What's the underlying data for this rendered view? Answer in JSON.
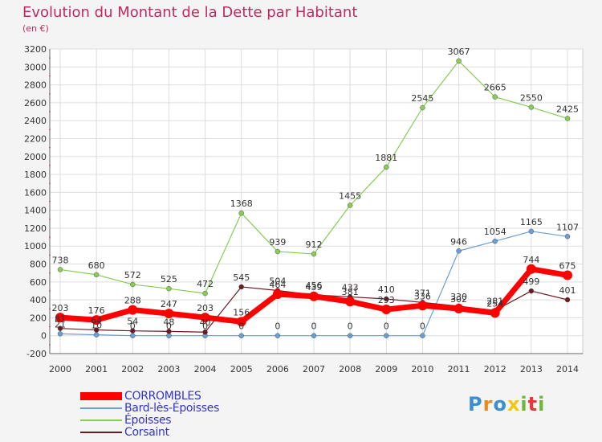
{
  "title": "Evolution du Montant de la Dette par Habitant",
  "unit": "(en €)",
  "logo": {
    "letters": [
      "P",
      "r",
      "o",
      "x",
      "i",
      "t",
      "i"
    ],
    "colors": [
      "#3a8fd0",
      "#e88b1e",
      "#3a8fd0",
      "#f2c60f",
      "#6cb83a",
      "#e23a3a",
      "#6cb83a"
    ]
  },
  "chart_data": {
    "type": "line",
    "x": [
      2000,
      2001,
      2002,
      2003,
      2004,
      2005,
      2006,
      2007,
      2008,
      2009,
      2010,
      2011,
      2012,
      2013,
      2014
    ],
    "ylim": [
      -200,
      3200
    ],
    "yticks": [
      -200,
      0,
      200,
      400,
      600,
      800,
      1000,
      1200,
      1400,
      1600,
      1800,
      2000,
      2200,
      2400,
      2600,
      2800,
      3000,
      3200
    ],
    "grid": true,
    "legend_position": "bottom-left",
    "series": [
      {
        "name": "CORROMBLES",
        "color": "#ff0000",
        "width": 7,
        "values": [
          203,
          176,
          288,
          247,
          203,
          156,
          464,
          439,
          381,
          293,
          336,
          302,
          254,
          744,
          675
        ]
      },
      {
        "name": "Bard-lès-Époisses",
        "color": "#6a9fd4",
        "width": 1.2,
        "values": [
          21,
          10,
          0,
          0,
          0,
          0,
          0,
          0,
          0,
          0,
          0,
          946,
          1054,
          1165,
          1107
        ]
      },
      {
        "name": "Époisses",
        "color": "#88cc55",
        "width": 1.2,
        "values": [
          738,
          680,
          572,
          525,
          472,
          1368,
          939,
          912,
          1455,
          1881,
          2545,
          3067,
          2665,
          2550,
          2425
        ]
      },
      {
        "name": "Corsaint",
        "color": "#6b1a22",
        "width": 1.2,
        "values": [
          81,
          64,
          54,
          48,
          40,
          545,
          504,
          456,
          433,
          410,
          371,
          330,
          281,
          499,
          401
        ]
      }
    ]
  }
}
